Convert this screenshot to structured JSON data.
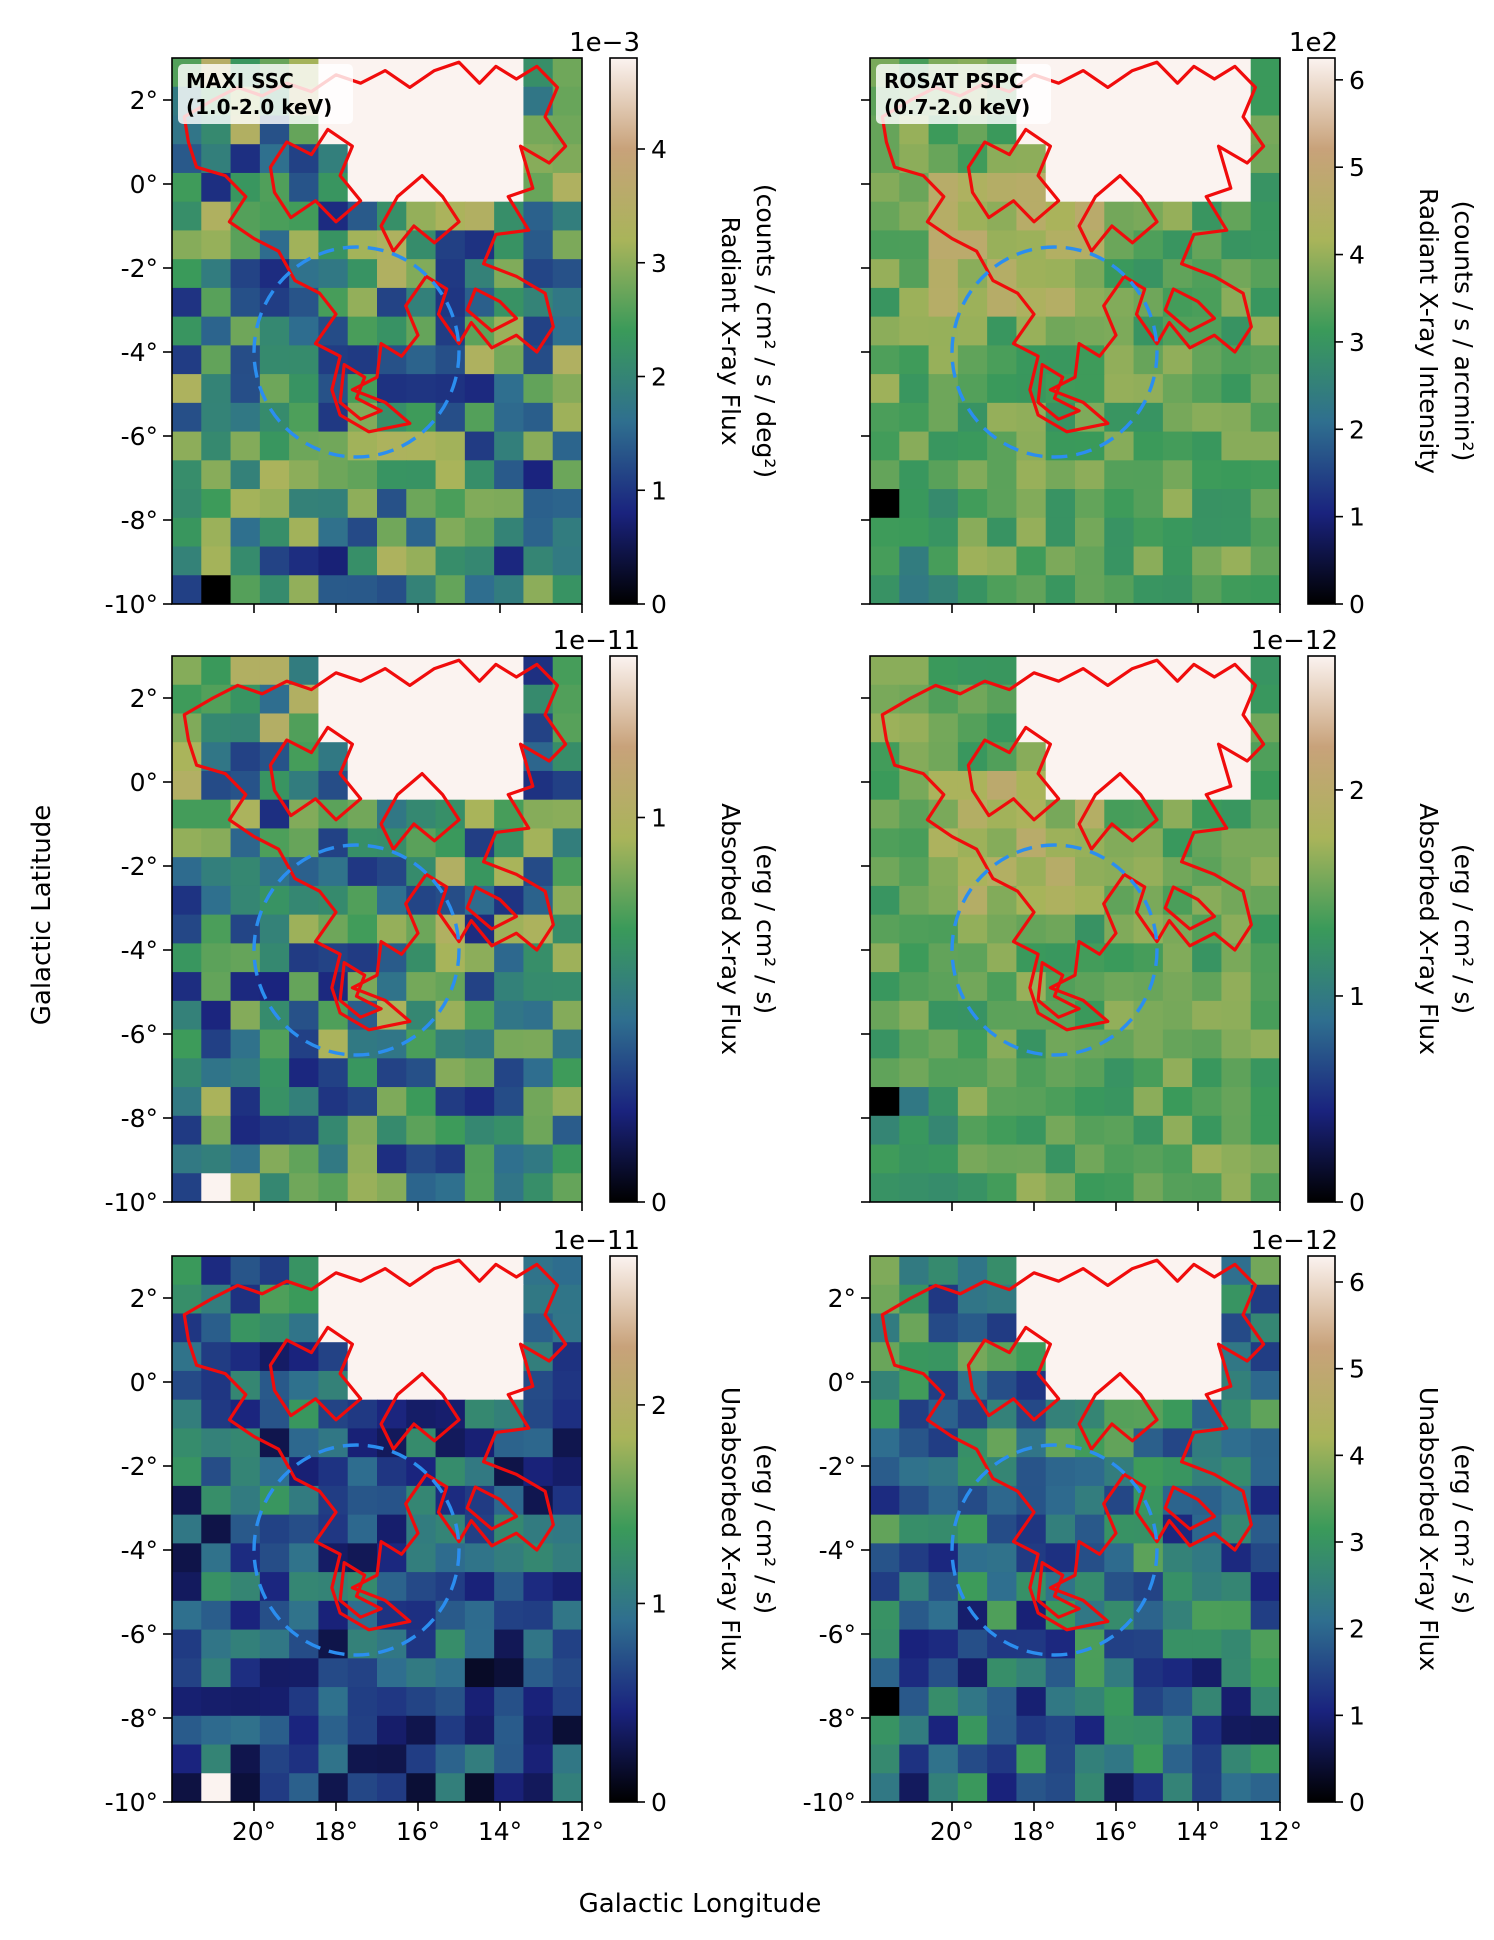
{
  "figure": {
    "xlabel": "Galactic Longitude",
    "ylabel": "Galactic Latitude",
    "x_ticks": [
      "20°",
      "18°",
      "16°",
      "14°",
      "12°"
    ],
    "y_ticks": [
      "2°",
      "0°",
      "-2°",
      "-4°",
      "-6°",
      "-8°",
      "-10°"
    ],
    "colormap": [
      "#000000",
      "#1a237e",
      "#2f6f8f",
      "#3a9a5a",
      "#a9b45a",
      "#c8a27a",
      "#fbf3f0"
    ]
  },
  "chart_data": [
    {
      "type": "heatmap",
      "panel": "maxi-radiant",
      "label_line1": "MAXI SSC",
      "label_line2": "(1.0-2.0 keV)",
      "cbar_exponent": "1e−3",
      "cbar_label": "Radiant X-ray Flux",
      "cbar_unit": "(counts / cm² / s / deg²)",
      "cbar_ticks": [
        "0",
        "1",
        "2",
        "3",
        "4"
      ],
      "cbar_tick_values": [
        0,
        1,
        2,
        3,
        4
      ],
      "vmax": 4.8,
      "xlim": [
        22,
        12
      ],
      "ylim": [
        -10,
        3
      ],
      "y_ticks_labeled": true,
      "x_ticks_labeled": false,
      "region_center": [
        17.5,
        -4.0
      ],
      "region_radius_deg": 2.5
    },
    {
      "type": "heatmap",
      "panel": "rosat-radiant",
      "label_line1": "ROSAT PSPC",
      "label_line2": "(0.7-2.0 keV)",
      "cbar_exponent": "1e2",
      "cbar_label": "Radiant X-ray Intensity",
      "cbar_unit": "(counts / s / arcmin²)",
      "cbar_ticks": [
        "0",
        "1",
        "2",
        "3",
        "4",
        "5",
        "6"
      ],
      "cbar_tick_values": [
        0,
        1,
        2,
        3,
        4,
        5,
        6
      ],
      "vmax": 6.25,
      "xlim": [
        22,
        12
      ],
      "ylim": [
        -10,
        3
      ],
      "y_ticks_labeled": false,
      "x_ticks_labeled": false,
      "region_center": [
        17.5,
        -4.0
      ],
      "region_radius_deg": 2.5
    },
    {
      "type": "heatmap",
      "panel": "maxi-absorbed",
      "label_line1": "",
      "label_line2": "",
      "cbar_exponent": "1e−11",
      "cbar_label": "Absorbed X-ray Flux",
      "cbar_unit": "(erg / cm² / s)",
      "cbar_ticks": [
        "0",
        "1"
      ],
      "cbar_tick_values": [
        0,
        1
      ],
      "vmax": 1.42,
      "xlim": [
        22,
        12
      ],
      "ylim": [
        -10,
        3
      ],
      "y_ticks_labeled": true,
      "x_ticks_labeled": false,
      "region_center": [
        17.5,
        -4.0
      ],
      "region_radius_deg": 2.5
    },
    {
      "type": "heatmap",
      "panel": "rosat-absorbed",
      "label_line1": "",
      "label_line2": "",
      "cbar_exponent": "1e−12",
      "cbar_label": "Absorbed X-ray Flux",
      "cbar_unit": "(erg / cm² / s)",
      "cbar_ticks": [
        "0",
        "1",
        "2"
      ],
      "cbar_tick_values": [
        0,
        1,
        2
      ],
      "vmax": 2.65,
      "xlim": [
        22,
        12
      ],
      "ylim": [
        -10,
        3
      ],
      "y_ticks_labeled": false,
      "x_ticks_labeled": false,
      "region_center": [
        17.5,
        -4.0
      ],
      "region_radius_deg": 2.5
    },
    {
      "type": "heatmap",
      "panel": "maxi-unabsorbed",
      "label_line1": "",
      "label_line2": "",
      "cbar_exponent": "1e−11",
      "cbar_label": "Unabsorbed X-ray Flux",
      "cbar_unit": "(erg / cm² / s)",
      "cbar_ticks": [
        "0",
        "1",
        "2"
      ],
      "cbar_tick_values": [
        0,
        1,
        2
      ],
      "vmax": 2.75,
      "xlim": [
        22,
        12
      ],
      "ylim": [
        -10,
        3
      ],
      "y_ticks_labeled": true,
      "x_ticks_labeled": true,
      "region_center": [
        17.5,
        -4.0
      ],
      "region_radius_deg": 2.5
    },
    {
      "type": "heatmap",
      "panel": "rosat-unabsorbed",
      "label_line1": "",
      "label_line2": "",
      "cbar_exponent": "1e−12",
      "cbar_label": "Unabsorbed X-ray Flux",
      "cbar_unit": "(erg / cm² / s)",
      "cbar_ticks": [
        "0",
        "1",
        "2",
        "3",
        "4",
        "5",
        "6"
      ],
      "cbar_tick_values": [
        0,
        1,
        2,
        3,
        4,
        5,
        6
      ],
      "vmax": 6.3,
      "xlim": [
        22,
        12
      ],
      "ylim": [
        -10,
        3
      ],
      "y_ticks_labeled": true,
      "x_ticks_labeled": true,
      "region_center": [
        17.5,
        -4.0
      ],
      "region_radius_deg": 2.5
    }
  ]
}
